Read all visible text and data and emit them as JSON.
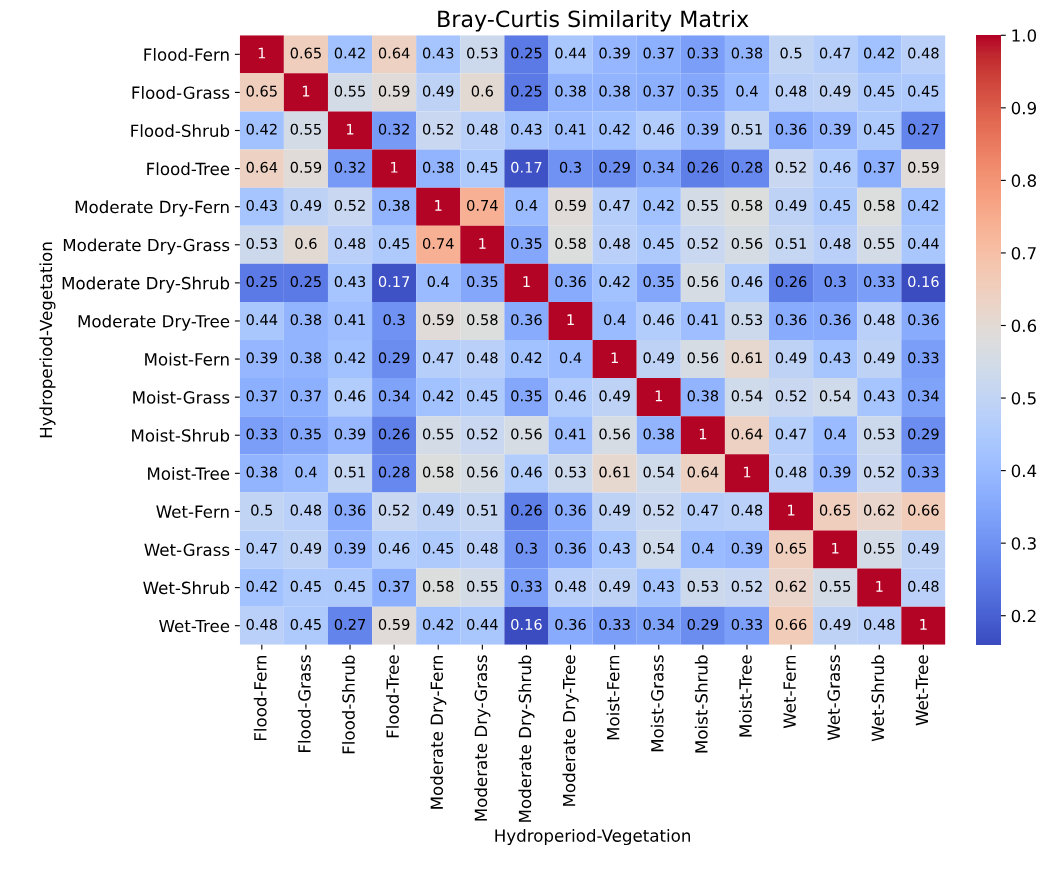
{
  "chart_data": {
    "type": "heatmap",
    "title": "Bray-Curtis Similarity Matrix",
    "xlabel": "Hydroperiod-Vegetation",
    "ylabel": "Hydroperiod-Vegetation",
    "categories": [
      "Flood-Fern",
      "Flood-Grass",
      "Flood-Shrub",
      "Flood-Tree",
      "Moderate Dry-Fern",
      "Moderate Dry-Grass",
      "Moderate Dry-Shrub",
      "Moderate Dry-Tree",
      "Moist-Fern",
      "Moist-Grass",
      "Moist-Shrub",
      "Moist-Tree",
      "Wet-Fern",
      "Wet-Grass",
      "Wet-Shrub",
      "Wet-Tree"
    ],
    "y_categories": [
      "Flood-Fern",
      "Flood-Grass",
      "Flood-Shrub",
      "Flood-Tree",
      "Moderate Dry-Fern",
      "Moderate Dry-Grass",
      "Moderate Dry-Shrub",
      "Moderate Dry-Tree",
      "Moist-Fern",
      "Moist-Grass",
      "Moist-Shrub",
      "Moist-Tree",
      "Wet-Fern",
      "Wet-Grass",
      "Wet-Shrub",
      "Wet-Tree"
    ],
    "cells": [
      [
        1,
        0.65,
        0.42,
        0.64,
        0.43,
        0.53,
        0.25,
        0.44,
        0.39,
        0.37,
        0.33,
        0.38,
        0.5,
        0.47,
        0.42,
        0.48
      ],
      [
        0.65,
        1,
        0.55,
        0.59,
        0.49,
        0.6,
        0.25,
        0.38,
        0.38,
        0.37,
        0.35,
        0.4,
        0.48,
        0.49,
        0.45,
        0.45
      ],
      [
        0.42,
        0.55,
        1,
        0.32,
        0.52,
        0.48,
        0.43,
        0.41,
        0.42,
        0.46,
        0.39,
        0.51,
        0.36,
        0.39,
        0.45,
        0.27
      ],
      [
        0.64,
        0.59,
        0.32,
        1,
        0.38,
        0.45,
        0.17,
        0.3,
        0.29,
        0.34,
        0.26,
        0.28,
        0.52,
        0.46,
        0.37,
        0.59
      ],
      [
        0.43,
        0.49,
        0.52,
        0.38,
        1,
        0.74,
        0.4,
        0.59,
        0.47,
        0.42,
        0.55,
        0.58,
        0.49,
        0.45,
        0.58,
        0.42
      ],
      [
        0.53,
        0.6,
        0.48,
        0.45,
        0.74,
        1,
        0.35,
        0.58,
        0.48,
        0.45,
        0.52,
        0.56,
        0.51,
        0.48,
        0.55,
        0.44
      ],
      [
        0.25,
        0.25,
        0.43,
        0.17,
        0.4,
        0.35,
        1,
        0.36,
        0.42,
        0.35,
        0.56,
        0.46,
        0.26,
        0.3,
        0.33,
        0.16
      ],
      [
        0.44,
        0.38,
        0.41,
        0.3,
        0.59,
        0.58,
        0.36,
        1,
        0.4,
        0.46,
        0.41,
        0.53,
        0.36,
        0.36,
        0.48,
        0.36
      ],
      [
        0.39,
        0.38,
        0.42,
        0.29,
        0.47,
        0.48,
        0.42,
        0.4,
        1,
        0.49,
        0.56,
        0.61,
        0.49,
        0.43,
        0.49,
        0.33
      ],
      [
        0.37,
        0.37,
        0.46,
        0.34,
        0.42,
        0.45,
        0.35,
        0.46,
        0.49,
        1,
        0.38,
        0.54,
        0.52,
        0.54,
        0.43,
        0.34
      ],
      [
        0.33,
        0.35,
        0.39,
        0.26,
        0.55,
        0.52,
        0.56,
        0.41,
        0.56,
        0.38,
        1,
        0.64,
        0.47,
        0.4,
        0.53,
        0.29
      ],
      [
        0.38,
        0.4,
        0.51,
        0.28,
        0.58,
        0.56,
        0.46,
        0.53,
        0.61,
        0.54,
        0.64,
        1,
        0.48,
        0.39,
        0.52,
        0.33
      ],
      [
        0.5,
        0.48,
        0.36,
        0.52,
        0.49,
        0.51,
        0.26,
        0.36,
        0.49,
        0.52,
        0.47,
        0.48,
        1,
        0.65,
        0.62,
        0.66
      ],
      [
        0.47,
        0.49,
        0.39,
        0.46,
        0.45,
        0.48,
        0.3,
        0.36,
        0.43,
        0.54,
        0.4,
        0.39,
        0.65,
        1,
        0.55,
        0.49
      ],
      [
        0.42,
        0.45,
        0.45,
        0.37,
        0.58,
        0.55,
        0.33,
        0.48,
        0.49,
        0.43,
        0.53,
        0.52,
        0.62,
        0.55,
        1,
        0.48
      ],
      [
        0.48,
        0.45,
        0.27,
        0.59,
        0.42,
        0.44,
        0.16,
        0.36,
        0.33,
        0.34,
        0.29,
        0.33,
        0.66,
        0.49,
        0.48,
        1
      ]
    ],
    "data_labels": true,
    "clim": [
      0.16,
      1.0
    ],
    "cticks": [
      {
        "value": 0.2,
        "label": "0.2"
      },
      {
        "value": 0.3,
        "label": "0.3"
      },
      {
        "value": 0.4,
        "label": "0.4"
      },
      {
        "value": 0.5,
        "label": "0.5"
      },
      {
        "value": 0.6,
        "label": "0.6"
      },
      {
        "value": 0.7,
        "label": "0.7"
      },
      {
        "value": 0.8,
        "label": "0.8"
      },
      {
        "value": 0.9,
        "label": "0.9"
      },
      {
        "value": 1.0,
        "label": "1.0"
      }
    ]
  }
}
